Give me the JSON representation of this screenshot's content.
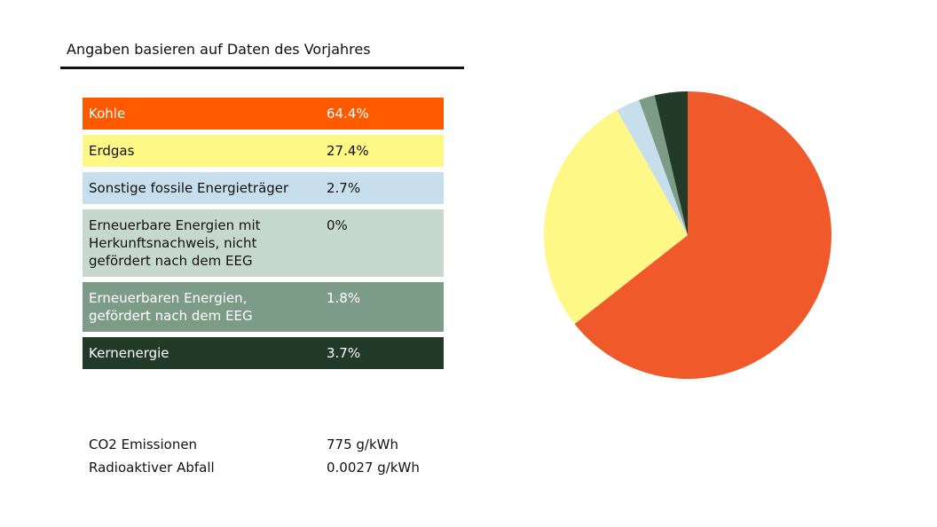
{
  "header": {
    "title": "Angaben basieren auf Daten des Vorjahres"
  },
  "chart_data": {
    "type": "pie",
    "title": "",
    "slices": [
      {
        "label": "Kohle",
        "value": 64.4,
        "display": "64.4%",
        "color": "#F0592A",
        "row_color": "#FF5A00",
        "text_color": "#ffffff"
      },
      {
        "label": "Erdgas",
        "value": 27.4,
        "display": "27.4%",
        "color": "#FFF886",
        "row_color": "#FFF886",
        "text_color": "#111111"
      },
      {
        "label": "Sonstige fossile Energieträger",
        "value": 2.7,
        "display": "2.7%",
        "color": "#C7DFEC",
        "row_color": "#C7DFEC",
        "text_color": "#111111"
      },
      {
        "label": "Erneuerbare Energien mit Herkunftsnachweis, nicht gefördert nach dem EEG",
        "value": 0,
        "display": "0%",
        "color": "#C7D9CE",
        "row_color": "#C7D9CE",
        "text_color": "#111111"
      },
      {
        "label": "Erneuerbaren Energien, gefördert nach dem EEG",
        "value": 1.8,
        "display": "1.8%",
        "color": "#7D9C88",
        "row_color": "#7D9C88",
        "text_color": "#ffffff"
      },
      {
        "label": "Kernenergie",
        "value": 3.7,
        "display": "3.7%",
        "color": "#213B28",
        "row_color": "#213B28",
        "text_color": "#ffffff"
      }
    ],
    "legend": "left"
  },
  "stats": [
    {
      "label": "CO2 Emissionen",
      "value": "775 g/kWh"
    },
    {
      "label": "Radioaktiver Abfall",
      "value": "0.0027 g/kWh"
    }
  ]
}
